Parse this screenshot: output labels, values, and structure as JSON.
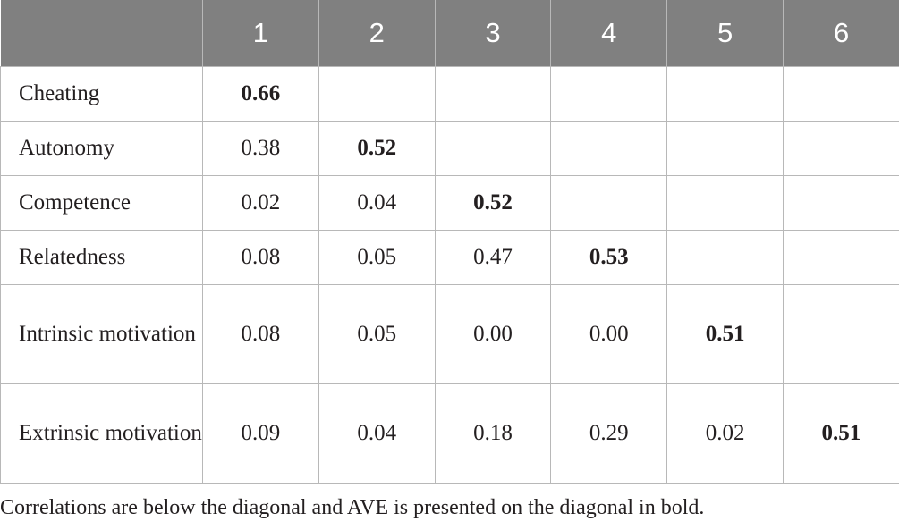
{
  "table": {
    "headers": [
      "",
      "1",
      "2",
      "3",
      "4",
      "5",
      "6"
    ],
    "rows": [
      {
        "label": "Cheating",
        "cells": [
          "0.66",
          "",
          "",
          "",
          "",
          ""
        ]
      },
      {
        "label": "Autonomy",
        "cells": [
          "0.38",
          "0.52",
          "",
          "",
          "",
          ""
        ]
      },
      {
        "label": "Competence",
        "cells": [
          "0.02",
          "0.04",
          "0.52",
          "",
          "",
          ""
        ]
      },
      {
        "label": "Relatedness",
        "cells": [
          "0.08",
          "0.05",
          "0.47",
          "0.53",
          "",
          ""
        ]
      },
      {
        "label": "Intrinsic motivation",
        "cells": [
          "0.08",
          "0.05",
          "0.00",
          "0.00",
          "0.51",
          ""
        ]
      },
      {
        "label": "Extrinsic motivation",
        "cells": [
          "0.09",
          "0.04",
          "0.18",
          "0.29",
          "0.02",
          "0.51"
        ]
      }
    ]
  },
  "footnote": "Correlations are below the diagonal and AVE is presented on the diagonal in bold."
}
